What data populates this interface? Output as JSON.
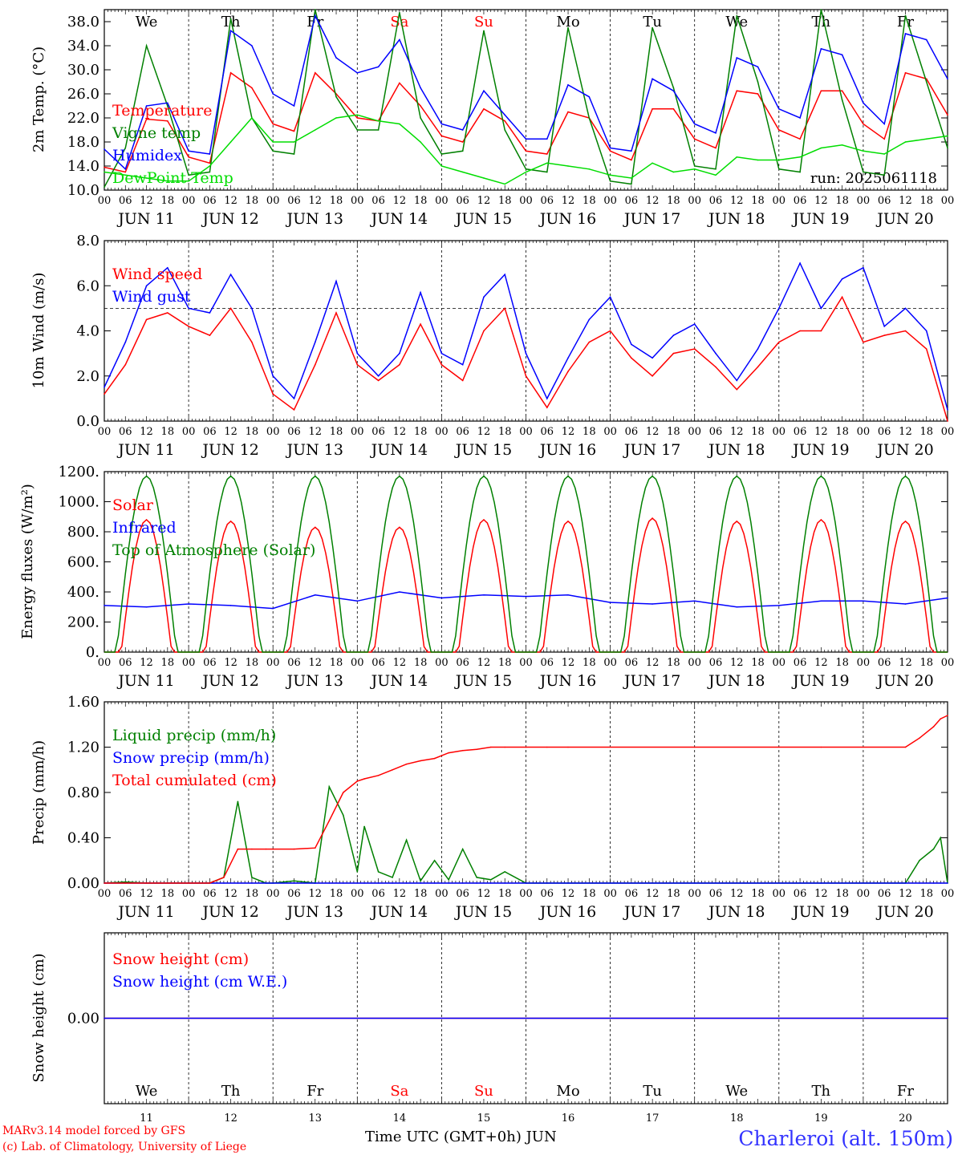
{
  "weekdays": [
    {
      "label": "We",
      "color": "#000000"
    },
    {
      "label": "Th",
      "color": "#000000"
    },
    {
      "label": "Fr",
      "color": "#000000"
    },
    {
      "label": "Sa",
      "color": "#ff0000"
    },
    {
      "label": "Su",
      "color": "#ff0000"
    },
    {
      "label": "Mo",
      "color": "#000000"
    },
    {
      "label": "Tu",
      "color": "#000000"
    },
    {
      "label": "We",
      "color": "#000000"
    },
    {
      "label": "Th",
      "color": "#000000"
    },
    {
      "label": "Fr",
      "color": "#000000"
    }
  ],
  "day_numbers": [
    "11",
    "12",
    "13",
    "14",
    "15",
    "16",
    "17",
    "18",
    "19",
    "20"
  ],
  "date_labels": [
    "JUN 11",
    "JUN 12",
    "JUN 13",
    "JUN 14",
    "JUN 15",
    "JUN 16",
    "JUN 17",
    "JUN 18",
    "JUN 19",
    "JUN 20"
  ],
  "hour_labels": [
    "00",
    "06",
    "12",
    "18"
  ],
  "last_hour_label": "00",
  "run_label": "run: 2025061118",
  "footer": {
    "model": "MARv3.14 model forced by GFS",
    "copyright": "(c) Lab. of Climatology, University of Liege",
    "time_axis": "Time UTC (GMT+0h) JUN",
    "station": "Charleroi (alt. 150m)"
  },
  "chart_data": [
    {
      "type": "line",
      "ylabel": "2m Temp. (°C)",
      "ylim": [
        10,
        40
      ],
      "yticks": [
        "10.0",
        "14.0",
        "18.0",
        "22.0",
        "26.0",
        "30.0",
        "34.0",
        "38.0"
      ],
      "yticks_values": [
        10,
        14,
        18,
        22,
        26,
        30,
        34,
        38
      ],
      "x_hours": [
        0,
        6,
        12,
        18,
        24,
        30,
        36,
        42,
        48,
        54,
        60,
        66,
        72,
        78,
        84,
        90,
        96,
        102,
        108,
        114,
        120,
        126,
        132,
        138,
        144,
        150,
        156,
        162,
        168,
        174,
        180,
        186,
        192,
        198,
        204,
        210,
        216,
        222,
        228,
        234,
        240
      ],
      "series": [
        {
          "name": "Temperature",
          "color": "#ff0000",
          "values": [
            13.8,
            13.0,
            21.8,
            21.5,
            15.5,
            14.5,
            29.5,
            27.0,
            21.0,
            19.8,
            29.5,
            26.0,
            22.0,
            21.5,
            27.8,
            24.0,
            19.0,
            18.0,
            23.5,
            21.5,
            16.5,
            16.0,
            23.0,
            22.0,
            16.5,
            15.0,
            23.5,
            23.5,
            18.5,
            17.0,
            26.5,
            26.0,
            20.0,
            18.5,
            26.5,
            26.5,
            21.0,
            18.5,
            29.5,
            28.5,
            22.5
          ]
        },
        {
          "name": "Vigne temp",
          "color": "#008000",
          "values": [
            10.5,
            17.0,
            34.0,
            24.0,
            12.5,
            13.0,
            38.5,
            22.0,
            16.5,
            16.0,
            40.0,
            25.5,
            20.0,
            20.0,
            39.5,
            22.0,
            16.0,
            16.5,
            36.5,
            20.0,
            13.5,
            13.0,
            37.0,
            22.0,
            11.5,
            11.0,
            37.0,
            27.0,
            14.0,
            13.5,
            39.0,
            28.0,
            13.5,
            13.0,
            40.0,
            25.0,
            13.0,
            12.5,
            39.0,
            28.0,
            17.0
          ]
        },
        {
          "name": "Humidex",
          "color": "#0000ff",
          "values": [
            16.8,
            13.5,
            24.0,
            24.5,
            16.5,
            16.0,
            36.5,
            34.0,
            26.0,
            24.0,
            39.0,
            32.0,
            29.5,
            30.5,
            35.0,
            27.0,
            21.0,
            20.0,
            26.5,
            22.5,
            18.5,
            18.5,
            27.5,
            25.5,
            17.0,
            16.5,
            28.5,
            26.5,
            21.0,
            19.5,
            32.0,
            30.5,
            23.5,
            22.0,
            33.5,
            32.5,
            24.5,
            21.0,
            36.0,
            35.0,
            28.5
          ]
        },
        {
          "name": "DewPoint Temp",
          "color": "#00dd00",
          "values": [
            13.0,
            12.5,
            12.0,
            11.5,
            11.5,
            14.0,
            18.0,
            22.0,
            18.0,
            18.0,
            20.0,
            22.0,
            22.5,
            21.5,
            21.0,
            18.0,
            14.0,
            13.0,
            12.0,
            11.0,
            13.0,
            14.5,
            14.0,
            13.5,
            12.5,
            12.0,
            14.5,
            13.0,
            13.5,
            12.5,
            15.5,
            15.0,
            15.0,
            15.5,
            17.0,
            17.5,
            16.5,
            16.0,
            18.0,
            18.5,
            19.0
          ]
        }
      ]
    },
    {
      "type": "line",
      "ylabel": "10m Wind (m/s)",
      "ylim": [
        0,
        8
      ],
      "yticks": [
        "0.0",
        "2.0",
        "4.0",
        "6.0",
        "8.0"
      ],
      "yticks_values": [
        0,
        2,
        4,
        6,
        8
      ],
      "reference_line": 5.0,
      "x_hours": [
        0,
        6,
        12,
        18,
        24,
        30,
        36,
        42,
        48,
        54,
        60,
        66,
        72,
        78,
        84,
        90,
        96,
        102,
        108,
        114,
        120,
        126,
        132,
        138,
        144,
        150,
        156,
        162,
        168,
        174,
        180,
        186,
        192,
        198,
        204,
        210,
        216,
        222,
        228,
        234,
        240
      ],
      "series": [
        {
          "name": "Wind speed",
          "color": "#ff0000",
          "values": [
            1.2,
            2.5,
            4.5,
            4.8,
            4.2,
            3.8,
            5.0,
            3.5,
            1.2,
            0.5,
            2.5,
            4.8,
            2.5,
            1.8,
            2.5,
            4.3,
            2.5,
            1.8,
            4.0,
            5.0,
            2.0,
            0.6,
            2.2,
            3.5,
            4.0,
            2.8,
            2.0,
            3.0,
            3.2,
            2.4,
            1.4,
            2.4,
            3.5,
            4.0,
            4.0,
            5.5,
            3.5,
            3.8,
            4.0,
            3.2,
            0.0
          ]
        },
        {
          "name": "Wind gust",
          "color": "#0000ff",
          "values": [
            1.5,
            3.5,
            6.0,
            6.8,
            5.0,
            4.8,
            6.5,
            5.0,
            2.0,
            1.0,
            3.5,
            6.2,
            3.0,
            2.0,
            3.0,
            5.7,
            3.0,
            2.5,
            5.5,
            6.5,
            3.0,
            1.0,
            2.8,
            4.5,
            5.5,
            3.4,
            2.8,
            3.8,
            4.3,
            3.0,
            1.8,
            3.2,
            5.0,
            7.0,
            5.0,
            6.3,
            6.8,
            4.2,
            5.0,
            4.0,
            0.5
          ]
        }
      ]
    },
    {
      "type": "line",
      "ylabel": "Energy fluxes (W/m²)",
      "ylim": [
        0,
        1200
      ],
      "yticks": [
        "0.",
        "200.",
        "400.",
        "600.",
        "800.",
        "1000.",
        "1200."
      ],
      "yticks_values": [
        0,
        200,
        400,
        600,
        800,
        1000,
        1200
      ],
      "daily_peaks": {
        "Solar": [
          880,
          870,
          830,
          830,
          880,
          870,
          890,
          870,
          880,
          870
        ],
        "Top of Atmosphere (Solar)": [
          1170,
          1170,
          1170,
          1170,
          1170,
          1170,
          1170,
          1170,
          1170,
          1170
        ]
      },
      "series": [
        {
          "name": "Solar",
          "color": "#ff0000",
          "values": [
            0,
            880,
            0,
            870,
            0,
            830,
            0,
            830,
            0,
            880,
            0,
            870,
            0,
            890,
            0,
            870,
            0,
            880,
            0,
            870,
            0
          ]
        },
        {
          "name": "Infrared",
          "color": "#0000ff",
          "values": [
            310,
            300,
            320,
            310,
            290,
            380,
            340,
            400,
            360,
            380,
            370,
            380,
            330,
            320,
            340,
            300,
            310,
            340,
            340,
            320,
            360
          ]
        },
        {
          "name": "Top of Atmosphere (Solar)",
          "color": "#008000",
          "values": [
            0,
            1170,
            0,
            1170,
            0,
            1170,
            0,
            1170,
            0,
            1170,
            0,
            1170,
            0,
            1170,
            0,
            1170,
            0,
            1170,
            0,
            1170,
            0
          ]
        }
      ]
    },
    {
      "type": "line",
      "ylabel": "Precip (mm/h)",
      "ylim": [
        0,
        1.6
      ],
      "yticks": [
        "0.00",
        "0.40",
        "0.80",
        "1.20",
        "1.60"
      ],
      "yticks_values": [
        0,
        0.4,
        0.8,
        1.2,
        1.6
      ],
      "x_hours": [
        0,
        6,
        12,
        18,
        24,
        30,
        34,
        38,
        42,
        46,
        48,
        54,
        60,
        64,
        68,
        72,
        74,
        78,
        82,
        86,
        90,
        94,
        98,
        102,
        106,
        110,
        114,
        120,
        126,
        132,
        168,
        204,
        228,
        232,
        236,
        238,
        240
      ],
      "series": [
        {
          "name": "Liquid precip (mm/h)",
          "color": "#008000",
          "values": [
            0,
            0.01,
            0,
            0,
            0,
            0,
            0.05,
            0.72,
            0.05,
            0,
            0,
            0.02,
            0,
            0.85,
            0.6,
            0.1,
            0.5,
            0.1,
            0.05,
            0.38,
            0.02,
            0.2,
            0.03,
            0.3,
            0.05,
            0.03,
            0.1,
            0,
            0,
            0,
            0,
            0,
            0,
            0.2,
            0.3,
            0.4,
            0
          ]
        },
        {
          "name": "Snow precip (mm/h)",
          "color": "#0000ff",
          "values": [
            0,
            0,
            0,
            0,
            0,
            0,
            0,
            0,
            0,
            0,
            0,
            0,
            0,
            0,
            0,
            0,
            0,
            0,
            0,
            0,
            0,
            0,
            0,
            0,
            0,
            0,
            0,
            0,
            0,
            0,
            0,
            0,
            0,
            0,
            0,
            0,
            0
          ]
        },
        {
          "name": "Total cumulated (cm)",
          "color": "#ff0000",
          "values": [
            0,
            0,
            0,
            0,
            0,
            0,
            0.05,
            0.3,
            0.3,
            0.3,
            0.3,
            0.3,
            0.31,
            0.55,
            0.8,
            0.9,
            0.92,
            0.95,
            1.0,
            1.05,
            1.08,
            1.1,
            1.15,
            1.17,
            1.18,
            1.2,
            1.2,
            1.2,
            1.2,
            1.2,
            1.2,
            1.2,
            1.2,
            1.28,
            1.38,
            1.45,
            1.48
          ]
        }
      ]
    },
    {
      "type": "line",
      "ylabel": "Snow height (cm)",
      "yticks": [
        "0.00"
      ],
      "yticks_values": [
        0
      ],
      "series": [
        {
          "name": "Snow height (cm)",
          "color": "#ff0000",
          "values": [
            0,
            0
          ]
        },
        {
          "name": "Snow height (cm W.E.)",
          "color": "#0000ff",
          "values": [
            0,
            0
          ]
        }
      ]
    }
  ]
}
